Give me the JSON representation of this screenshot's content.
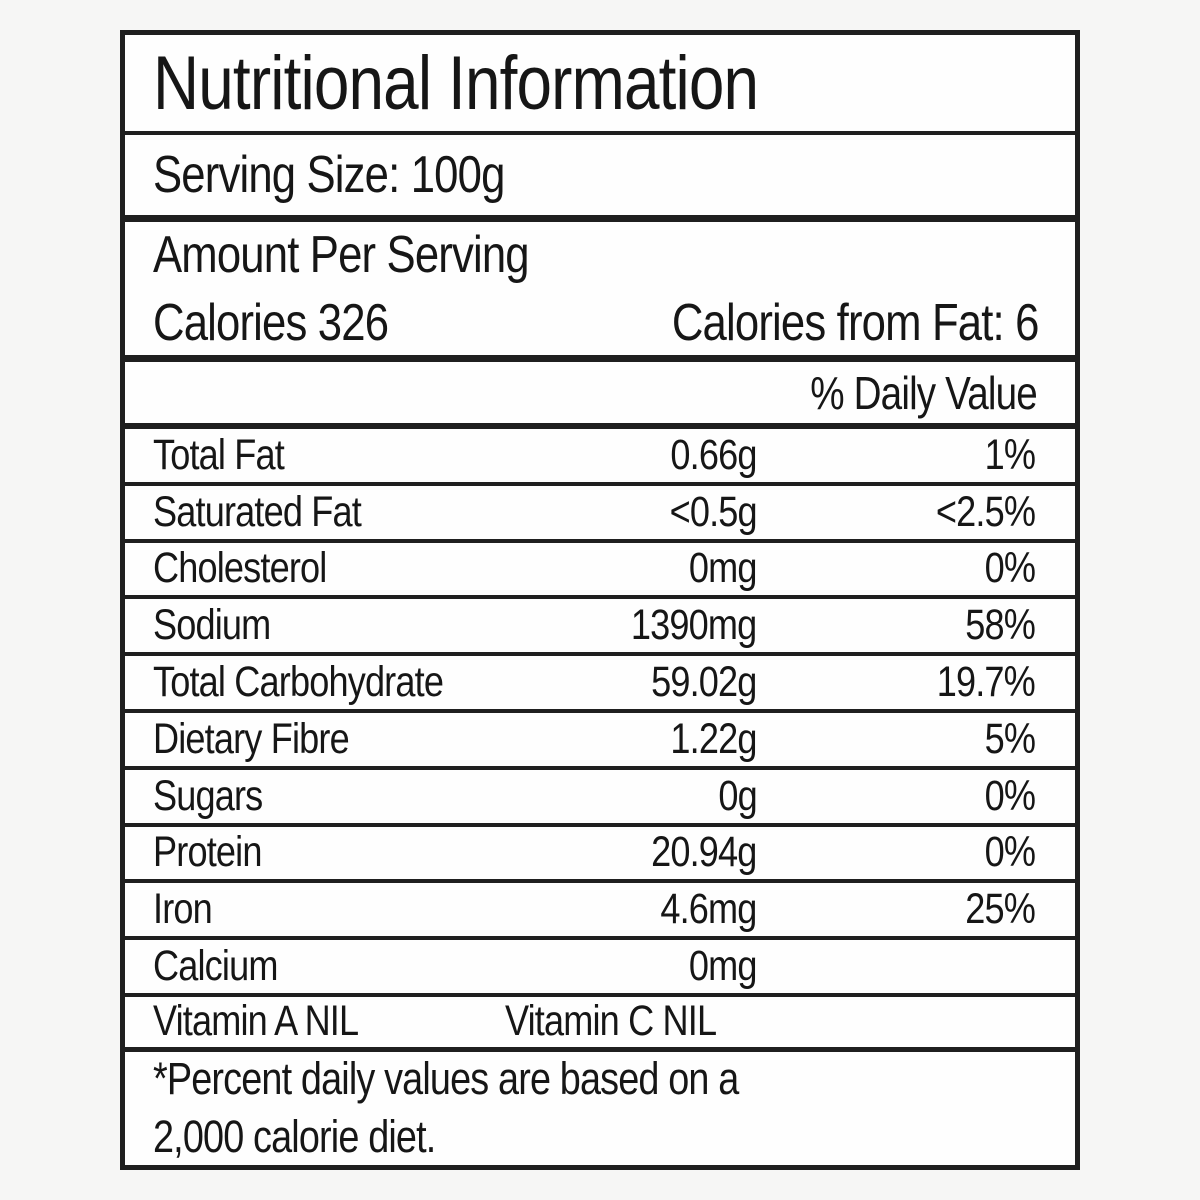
{
  "label": {
    "title": "Nutritional Information",
    "serving_size": "Serving Size: 100g",
    "amount_per_serving": "Amount Per Serving",
    "calories_label": "Calories",
    "calories_value": "326",
    "calories_from_fat": "Calories from Fat: 6",
    "daily_value_header": "% Daily Value",
    "rows": [
      {
        "name": "Total Fat",
        "amount": "0.66g",
        "dv": "1%"
      },
      {
        "name": "Saturated Fat",
        "amount": "<0.5g",
        "dv": "<2.5%"
      },
      {
        "name": "Cholesterol",
        "amount": "0mg",
        "dv": "0%"
      },
      {
        "name": "Sodium",
        "amount": "1390mg",
        "dv": "58%"
      },
      {
        "name": "Total Carbohydrate",
        "amount": "59.02g",
        "dv": "19.7%"
      },
      {
        "name": "Dietary Fibre",
        "amount": "1.22g",
        "dv": "5%"
      },
      {
        "name": "Sugars",
        "amount": "0g",
        "dv": "0%"
      },
      {
        "name": "Protein",
        "amount": "20.94g",
        "dv": "0%"
      },
      {
        "name": "Iron",
        "amount": "4.6mg",
        "dv": "25%"
      },
      {
        "name": "Calcium",
        "amount": "0mg",
        "dv": ""
      }
    ],
    "vitamin_a": "Vitamin A NIL",
    "vitamin_c": "Vitamin C NIL",
    "footnote_line1": "*Percent daily values are based on a",
    "footnote_line2": "2,000 calorie diet.",
    "colors": {
      "text": "#161616",
      "border": "#1f1f1f",
      "label_background": "#fefefe",
      "page_background": "#f6f6f5"
    }
  }
}
